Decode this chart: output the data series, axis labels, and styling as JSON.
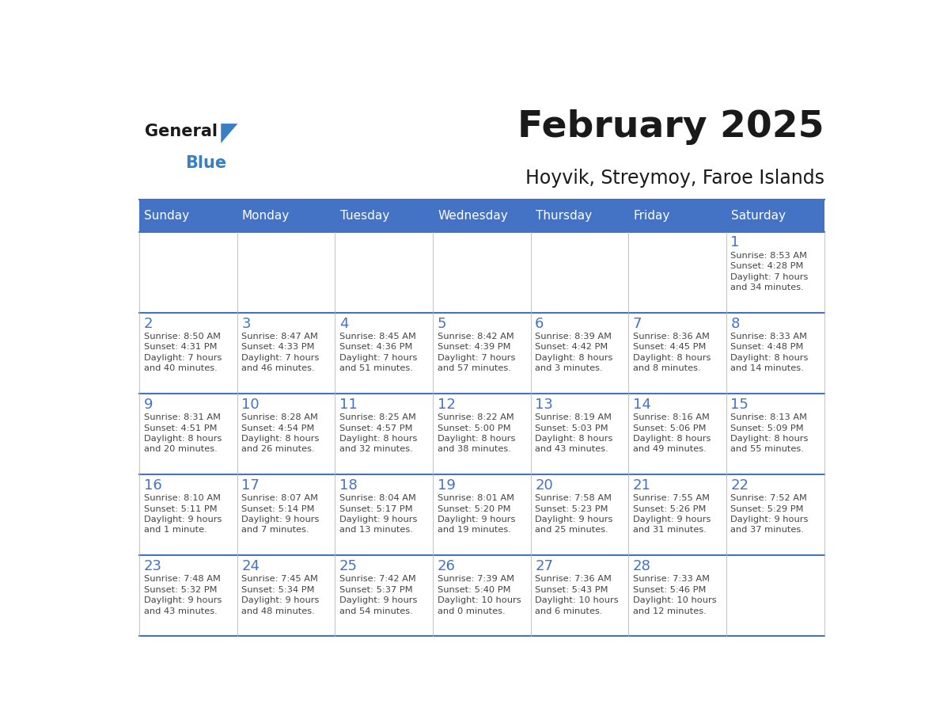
{
  "title": "February 2025",
  "subtitle": "Hoyvik, Streymoy, Faroe Islands",
  "header_bg_color": "#4472c4",
  "header_text_color": "#ffffff",
  "grid_color": "#4472c4",
  "day_number_color": "#4472c4",
  "text_color": "#444444",
  "days_of_week": [
    "Sunday",
    "Monday",
    "Tuesday",
    "Wednesday",
    "Thursday",
    "Friday",
    "Saturday"
  ],
  "weeks": [
    [
      {
        "day": "",
        "info": ""
      },
      {
        "day": "",
        "info": ""
      },
      {
        "day": "",
        "info": ""
      },
      {
        "day": "",
        "info": ""
      },
      {
        "day": "",
        "info": ""
      },
      {
        "day": "",
        "info": ""
      },
      {
        "day": "1",
        "info": "Sunrise: 8:53 AM\nSunset: 4:28 PM\nDaylight: 7 hours\nand 34 minutes."
      }
    ],
    [
      {
        "day": "2",
        "info": "Sunrise: 8:50 AM\nSunset: 4:31 PM\nDaylight: 7 hours\nand 40 minutes."
      },
      {
        "day": "3",
        "info": "Sunrise: 8:47 AM\nSunset: 4:33 PM\nDaylight: 7 hours\nand 46 minutes."
      },
      {
        "day": "4",
        "info": "Sunrise: 8:45 AM\nSunset: 4:36 PM\nDaylight: 7 hours\nand 51 minutes."
      },
      {
        "day": "5",
        "info": "Sunrise: 8:42 AM\nSunset: 4:39 PM\nDaylight: 7 hours\nand 57 minutes."
      },
      {
        "day": "6",
        "info": "Sunrise: 8:39 AM\nSunset: 4:42 PM\nDaylight: 8 hours\nand 3 minutes."
      },
      {
        "day": "7",
        "info": "Sunrise: 8:36 AM\nSunset: 4:45 PM\nDaylight: 8 hours\nand 8 minutes."
      },
      {
        "day": "8",
        "info": "Sunrise: 8:33 AM\nSunset: 4:48 PM\nDaylight: 8 hours\nand 14 minutes."
      }
    ],
    [
      {
        "day": "9",
        "info": "Sunrise: 8:31 AM\nSunset: 4:51 PM\nDaylight: 8 hours\nand 20 minutes."
      },
      {
        "day": "10",
        "info": "Sunrise: 8:28 AM\nSunset: 4:54 PM\nDaylight: 8 hours\nand 26 minutes."
      },
      {
        "day": "11",
        "info": "Sunrise: 8:25 AM\nSunset: 4:57 PM\nDaylight: 8 hours\nand 32 minutes."
      },
      {
        "day": "12",
        "info": "Sunrise: 8:22 AM\nSunset: 5:00 PM\nDaylight: 8 hours\nand 38 minutes."
      },
      {
        "day": "13",
        "info": "Sunrise: 8:19 AM\nSunset: 5:03 PM\nDaylight: 8 hours\nand 43 minutes."
      },
      {
        "day": "14",
        "info": "Sunrise: 8:16 AM\nSunset: 5:06 PM\nDaylight: 8 hours\nand 49 minutes."
      },
      {
        "day": "15",
        "info": "Sunrise: 8:13 AM\nSunset: 5:09 PM\nDaylight: 8 hours\nand 55 minutes."
      }
    ],
    [
      {
        "day": "16",
        "info": "Sunrise: 8:10 AM\nSunset: 5:11 PM\nDaylight: 9 hours\nand 1 minute."
      },
      {
        "day": "17",
        "info": "Sunrise: 8:07 AM\nSunset: 5:14 PM\nDaylight: 9 hours\nand 7 minutes."
      },
      {
        "day": "18",
        "info": "Sunrise: 8:04 AM\nSunset: 5:17 PM\nDaylight: 9 hours\nand 13 minutes."
      },
      {
        "day": "19",
        "info": "Sunrise: 8:01 AM\nSunset: 5:20 PM\nDaylight: 9 hours\nand 19 minutes."
      },
      {
        "day": "20",
        "info": "Sunrise: 7:58 AM\nSunset: 5:23 PM\nDaylight: 9 hours\nand 25 minutes."
      },
      {
        "day": "21",
        "info": "Sunrise: 7:55 AM\nSunset: 5:26 PM\nDaylight: 9 hours\nand 31 minutes."
      },
      {
        "day": "22",
        "info": "Sunrise: 7:52 AM\nSunset: 5:29 PM\nDaylight: 9 hours\nand 37 minutes."
      }
    ],
    [
      {
        "day": "23",
        "info": "Sunrise: 7:48 AM\nSunset: 5:32 PM\nDaylight: 9 hours\nand 43 minutes."
      },
      {
        "day": "24",
        "info": "Sunrise: 7:45 AM\nSunset: 5:34 PM\nDaylight: 9 hours\nand 48 minutes."
      },
      {
        "day": "25",
        "info": "Sunrise: 7:42 AM\nSunset: 5:37 PM\nDaylight: 9 hours\nand 54 minutes."
      },
      {
        "day": "26",
        "info": "Sunrise: 7:39 AM\nSunset: 5:40 PM\nDaylight: 10 hours\nand 0 minutes."
      },
      {
        "day": "27",
        "info": "Sunrise: 7:36 AM\nSunset: 5:43 PM\nDaylight: 10 hours\nand 6 minutes."
      },
      {
        "day": "28",
        "info": "Sunrise: 7:33 AM\nSunset: 5:46 PM\nDaylight: 10 hours\nand 12 minutes."
      },
      {
        "day": "",
        "info": ""
      }
    ]
  ]
}
